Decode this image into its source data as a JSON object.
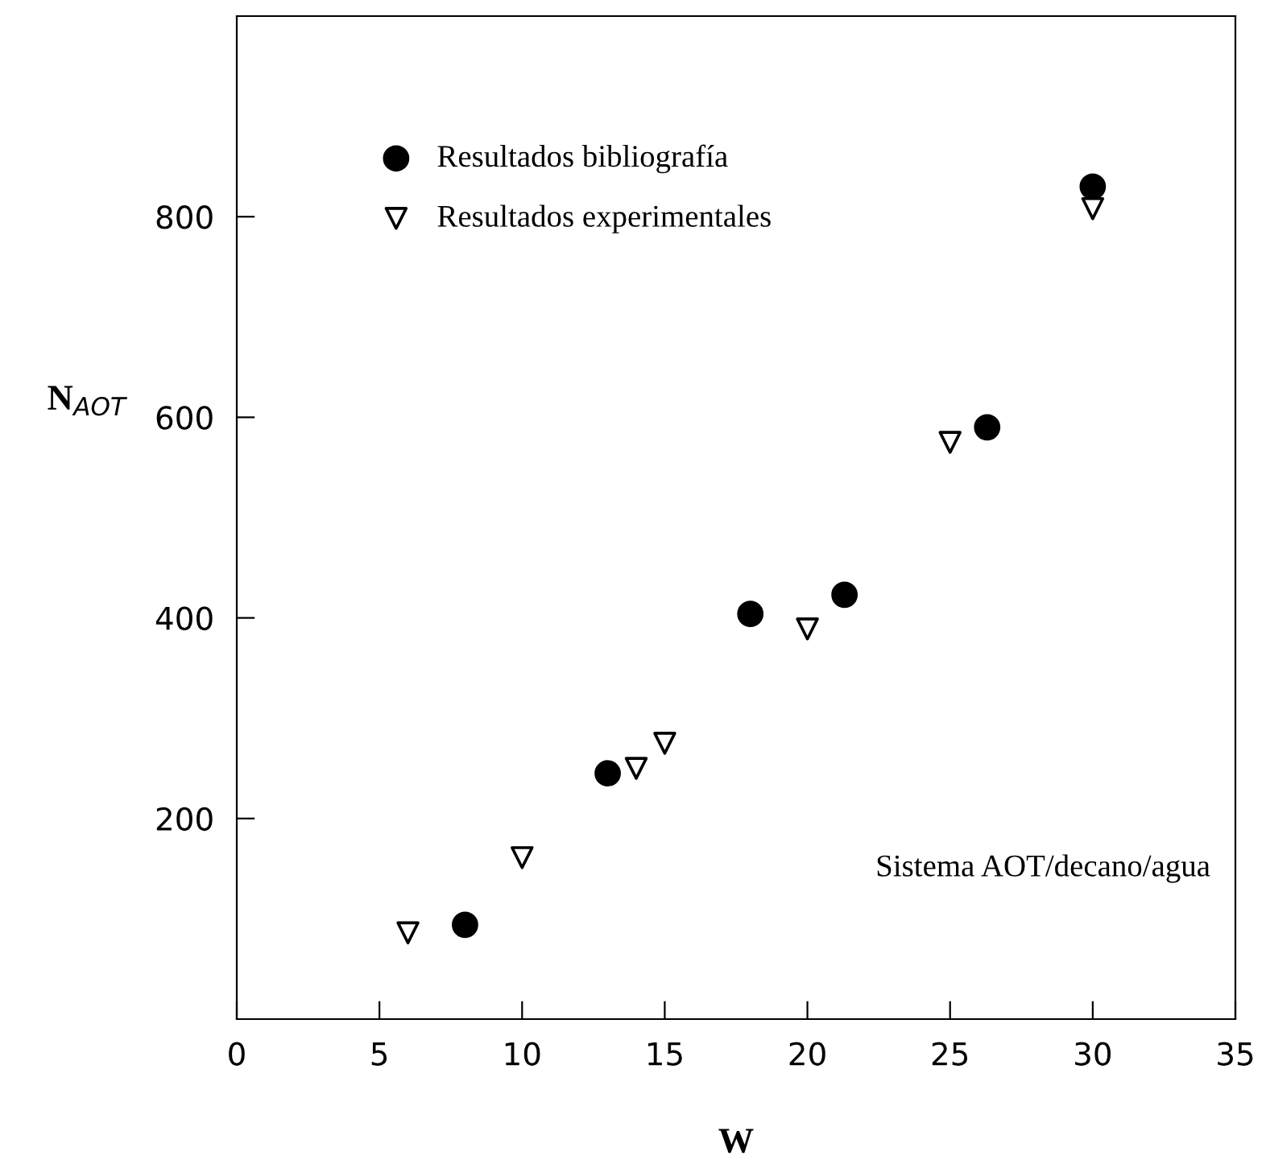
{
  "chart_data": {
    "type": "scatter",
    "xlabel": "W",
    "ylabel": "N$_{AOT}$",
    "xlim": [
      0,
      35
    ],
    "xticks": [
      0,
      5,
      10,
      15,
      20,
      25,
      30,
      35
    ],
    "ylim": [
      0,
      1000
    ],
    "yticks": [
      200,
      400,
      600,
      800
    ],
    "grid": false,
    "legend": "top left",
    "series": [
      {
        "name": "Resultados bibliografía",
        "color": "#000000",
        "marker": "circle",
        "x": [
          8,
          13,
          18,
          21.3,
          26.3,
          30
        ],
        "values": [
          94,
          245,
          404,
          423,
          590,
          830
        ]
      },
      {
        "name": "Resultados experimentales",
        "color": "#000000",
        "marker": "triangle",
        "x": [
          6,
          10,
          14,
          15,
          20,
          25,
          30
        ],
        "values": [
          86,
          161,
          250,
          275,
          389,
          575,
          808
        ]
      }
    ],
    "annotations": [
      "Sistema AOT/decano/agua"
    ]
  }
}
